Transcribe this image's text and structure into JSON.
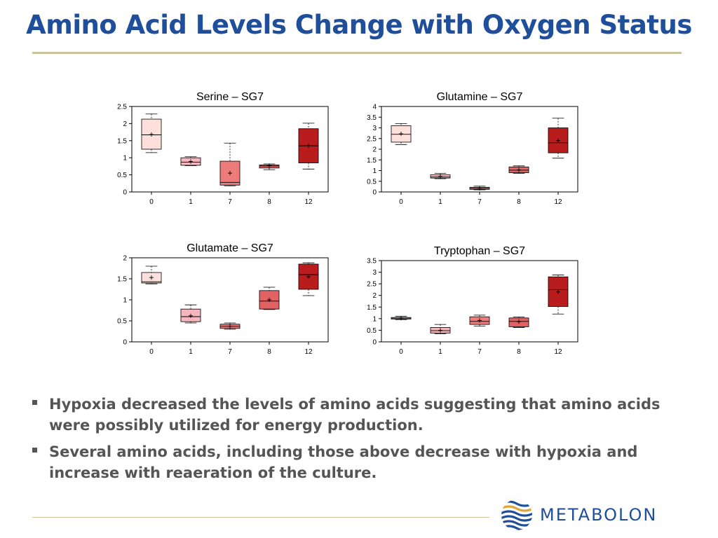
{
  "slide": {
    "title": "Amino Acid Levels Change with Oxygen Status",
    "bullets": [
      "Hypoxia decreased the levels of amino acids suggesting that amino acids were possibly utilized for energy production.",
      "Several amino acids, including those above decrease with hypoxia and increase with reaeration of the culture."
    ],
    "logo": {
      "icon": "metabolon-wave-globe-icon",
      "text": "METABOLON",
      "color": "#1f4e9a"
    }
  },
  "chart_data": [
    {
      "type": "box",
      "title": "Serine – SG7",
      "categories": [
        "0",
        "1",
        "7",
        "8",
        "12"
      ],
      "ylim": [
        0,
        2.5
      ],
      "yticks": [
        "0",
        "0.5",
        "1",
        "1.5",
        "2",
        "2.5"
      ],
      "colors": [
        "#fde0dc",
        "#f6b6bd",
        "#ee7b7b",
        "#e06262",
        "#b81c1c"
      ],
      "boxes": [
        {
          "min": 1.15,
          "q1": 1.25,
          "median": 1.67,
          "q3": 2.13,
          "max": 2.28,
          "mean": 1.68
        },
        {
          "min": 0.77,
          "q1": 0.78,
          "median": 0.87,
          "q3": 1.0,
          "max": 1.03,
          "mean": 0.89
        },
        {
          "min": 0.18,
          "q1": 0.2,
          "median": 0.28,
          "q3": 0.9,
          "max": 1.43,
          "mean": 0.55
        },
        {
          "min": 0.65,
          "q1": 0.7,
          "median": 0.76,
          "q3": 0.79,
          "max": 0.82,
          "mean": 0.77
        },
        {
          "min": 0.67,
          "q1": 0.85,
          "median": 1.35,
          "q3": 1.85,
          "max": 2.01,
          "mean": 1.35
        }
      ]
    },
    {
      "type": "box",
      "title": "Glutamine – SG7",
      "categories": [
        "0",
        "1",
        "7",
        "8",
        "12"
      ],
      "ylim": [
        0,
        4
      ],
      "yticks": [
        "0",
        "0.5",
        "1",
        "1.5",
        "2",
        "2.5",
        "3",
        "3.5",
        "4"
      ],
      "colors": [
        "#fde0dc",
        "#f6b6bd",
        "#ee7b7b",
        "#e06262",
        "#b81c1c"
      ],
      "boxes": [
        {
          "min": 2.22,
          "q1": 2.33,
          "median": 2.7,
          "q3": 3.1,
          "max": 3.2,
          "mean": 2.72
        },
        {
          "min": 0.62,
          "q1": 0.65,
          "median": 0.7,
          "q3": 0.8,
          "max": 0.87,
          "mean": 0.72
        },
        {
          "min": 0.1,
          "q1": 0.12,
          "median": 0.17,
          "q3": 0.22,
          "max": 0.27,
          "mean": 0.17
        },
        {
          "min": 0.87,
          "q1": 0.9,
          "median": 1.02,
          "q3": 1.17,
          "max": 1.22,
          "mean": 1.03
        },
        {
          "min": 1.58,
          "q1": 1.83,
          "median": 2.3,
          "q3": 3.0,
          "max": 3.45,
          "mean": 2.4
        }
      ]
    },
    {
      "type": "box",
      "title": "Glutamate – SG7",
      "categories": [
        "0",
        "1",
        "7",
        "8",
        "12"
      ],
      "ylim": [
        0,
        2
      ],
      "yticks": [
        "0",
        "0.5",
        "1",
        "1.5",
        "2"
      ],
      "colors": [
        "#fde0dc",
        "#f6b6bd",
        "#ee7b7b",
        "#e06262",
        "#b81c1c"
      ],
      "boxes": [
        {
          "min": 1.38,
          "q1": 1.4,
          "median": 1.43,
          "q3": 1.65,
          "max": 1.8,
          "mean": 1.53
        },
        {
          "min": 0.45,
          "q1": 0.48,
          "median": 0.6,
          "q3": 0.78,
          "max": 0.88,
          "mean": 0.62
        },
        {
          "min": 0.3,
          "q1": 0.32,
          "median": 0.37,
          "q3": 0.42,
          "max": 0.45,
          "mean": 0.37
        },
        {
          "min": 0.77,
          "q1": 0.78,
          "median": 0.97,
          "q3": 1.22,
          "max": 1.3,
          "mean": 1.0
        },
        {
          "min": 1.1,
          "q1": 1.25,
          "median": 1.6,
          "q3": 1.85,
          "max": 1.88,
          "mean": 1.55
        }
      ]
    },
    {
      "type": "box",
      "title": "Tryptophan – SG7",
      "categories": [
        "0",
        "1",
        "7",
        "8",
        "12"
      ],
      "ylim": [
        0,
        3.5
      ],
      "yticks": [
        "0",
        "0.5",
        "1",
        "1.5",
        "2",
        "2.5",
        "3",
        "3.5"
      ],
      "colors": [
        "#fde0dc",
        "#f6b6bd",
        "#ee7b7b",
        "#e06262",
        "#b81c1c"
      ],
      "boxes": [
        {
          "min": 0.96,
          "q1": 0.98,
          "median": 1.02,
          "q3": 1.05,
          "max": 1.1,
          "mean": 1.02
        },
        {
          "min": 0.35,
          "q1": 0.38,
          "median": 0.48,
          "q3": 0.62,
          "max": 0.75,
          "mean": 0.5
        },
        {
          "min": 0.68,
          "q1": 0.75,
          "median": 0.88,
          "q3": 1.08,
          "max": 1.15,
          "mean": 0.92
        },
        {
          "min": 0.62,
          "q1": 0.65,
          "median": 0.88,
          "q3": 1.03,
          "max": 1.07,
          "mean": 0.87
        },
        {
          "min": 1.2,
          "q1": 1.52,
          "median": 2.25,
          "q3": 2.8,
          "max": 2.88,
          "mean": 2.15
        }
      ]
    }
  ]
}
